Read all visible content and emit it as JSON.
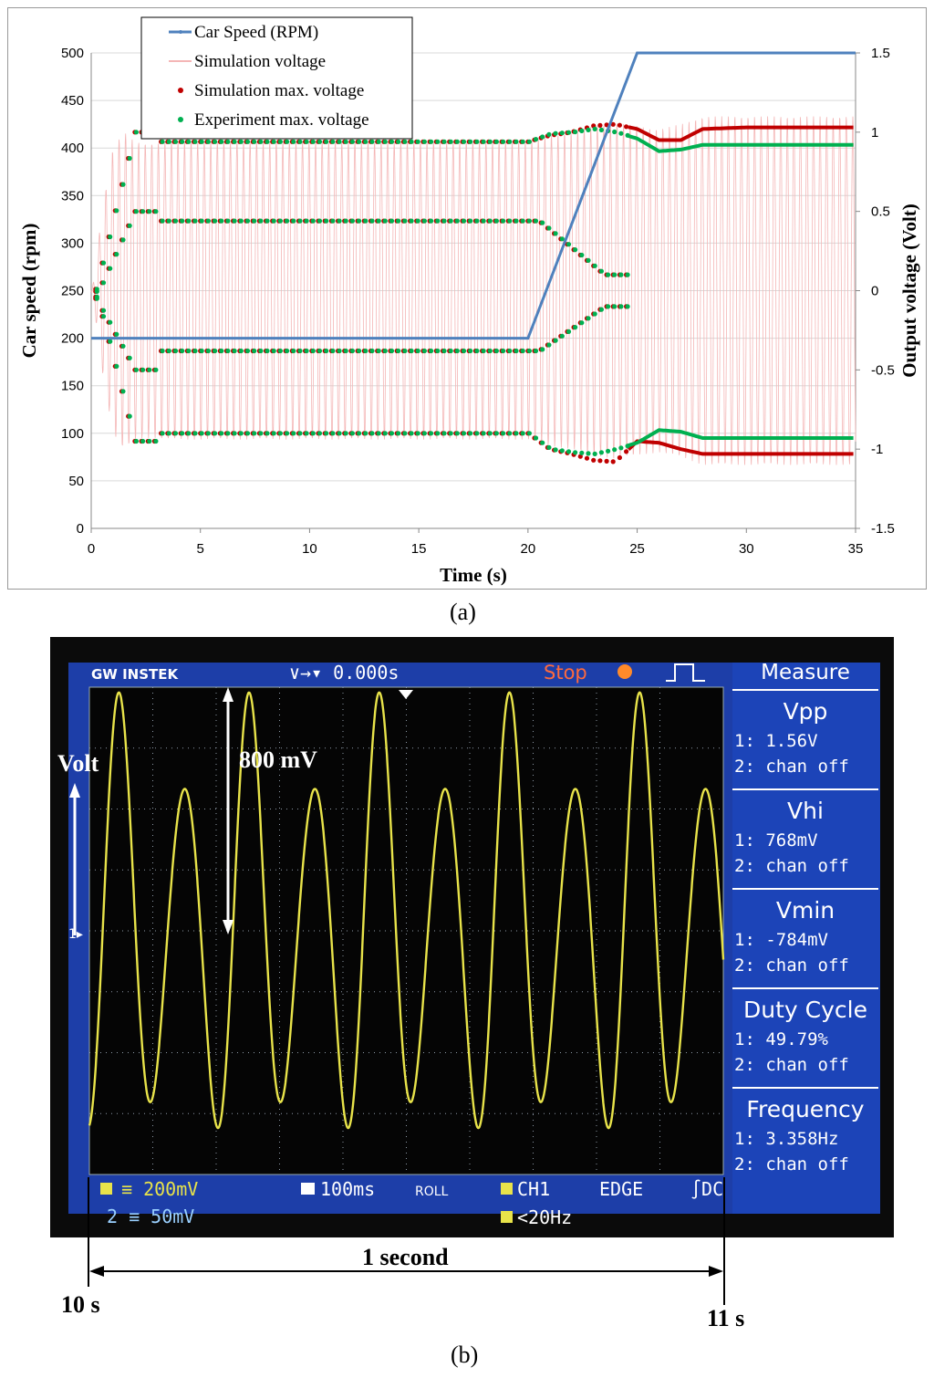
{
  "chart_data": [
    {
      "type": "line",
      "panel_label": "(a)",
      "xlabel": "Time (s)",
      "ylabel_left": "Car speed (rpm)",
      "ylabel_right": "Output voltage (Volt)",
      "xlim": [
        0,
        35
      ],
      "ylim_left": [
        0,
        500
      ],
      "ylim_right": [
        -1.5,
        1.5
      ],
      "x_ticks": [
        "0",
        "5",
        "10",
        "15",
        "20",
        "25",
        "30",
        "35"
      ],
      "y_ticks_left": [
        "0",
        "50",
        "100",
        "150",
        "200",
        "250",
        "300",
        "350",
        "400",
        "450",
        "500"
      ],
      "y_ticks_right": [
        "-1.5",
        "-1",
        "-0.5",
        "0",
        "0.5",
        "1",
        "1.5"
      ],
      "grid": "horizontal",
      "legend_position": "top-left",
      "series": [
        {
          "name": "Car Speed (RPM)",
          "axis": "left",
          "color": "#4f81bd",
          "x": [
            0,
            20,
            25,
            35
          ],
          "y": [
            200,
            200,
            500,
            500
          ]
        },
        {
          "name": "Simulation voltage",
          "axis": "right",
          "color": "#f4b6b6",
          "note_period_s": 0.3,
          "envelope_x": [
            0,
            0.5,
            1,
            1.5,
            2,
            2.5,
            3,
            3.5,
            4,
            20,
            20.5,
            21,
            21.5,
            22,
            22.5,
            23,
            23.5,
            24,
            25,
            26,
            27,
            28,
            29,
            30,
            35
          ],
          "envelope_max": [
            -0.05,
            0.5,
            0.9,
            1.0,
            0.94,
            0.93,
            0.93,
            0.94,
            0.94,
            0.94,
            0.96,
            0.98,
            0.99,
            1.0,
            1.02,
            1.04,
            1.05,
            1.06,
            1.04,
            1.02,
            1.05,
            1.1,
            1.1,
            1.1,
            1.1
          ]
        },
        {
          "name": "Simulation max. voltage",
          "axis": "right",
          "color": "#c00000",
          "marker": "dot",
          "x": [
            3,
            5,
            10,
            15,
            20,
            21,
            22,
            23,
            24,
            25,
            26,
            27,
            28,
            30,
            35
          ],
          "y_outer_top": [
            0.94,
            0.94,
            0.94,
            0.94,
            0.94,
            0.98,
            1.0,
            1.04,
            1.05,
            1.02,
            0.95,
            0.95,
            1.02,
            1.03,
            1.03
          ],
          "y_outer_bottom": [
            -0.9,
            -0.9,
            -0.9,
            -0.9,
            -0.9,
            -1.0,
            -1.03,
            -1.07,
            -1.08,
            -0.95,
            -0.96,
            -1.0,
            -1.03,
            -1.03,
            -1.03
          ]
        },
        {
          "name": "Experiment max. voltage",
          "axis": "right",
          "color": "#00b050",
          "marker": "dot",
          "x": [
            3,
            5,
            10,
            15,
            20,
            21,
            22,
            23,
            24,
            25,
            26,
            27,
            28,
            30,
            35
          ],
          "y_outer_top": [
            0.94,
            0.94,
            0.94,
            0.94,
            0.94,
            0.99,
            1.0,
            1.02,
            1.0,
            0.96,
            0.88,
            0.89,
            0.92,
            0.92,
            0.92
          ],
          "y_outer_bottom": [
            -0.9,
            -0.9,
            -0.9,
            -0.9,
            -0.9,
            -1.0,
            -1.02,
            -1.03,
            -1.0,
            -0.96,
            -0.88,
            -0.89,
            -0.93,
            -0.93,
            -0.93
          ]
        }
      ],
      "inner_envelope": {
        "top": 0.44,
        "bottom": -0.38
      }
    },
    {
      "type": "line",
      "panel_label": "(b)",
      "brand": "GW INSTEK",
      "trigger_time": "0.000s",
      "run_state": "Stop",
      "menu_title": "Measure",
      "measurements": [
        {
          "name": "Vpp",
          "ch1": "1: 1.56V",
          "ch2": "2: chan off"
        },
        {
          "name": "Vhi",
          "ch1": "1: 768mV",
          "ch2": "2: chan off"
        },
        {
          "name": "Vmin",
          "ch1": "1: -784mV",
          "ch2": "2: chan off"
        },
        {
          "name": "Duty Cycle",
          "ch1": "1: 49.79%",
          "ch2": "2: chan off"
        },
        {
          "name": "Frequency",
          "ch1": "1: 3.358Hz",
          "ch2": "2: chan off"
        }
      ],
      "status": {
        "ch1_scale": "200mV",
        "ch2_scale": "50mV",
        "timebase": "100ms",
        "mode": "ROLL",
        "trigger_source": "CH1",
        "trigger_type": "EDGE",
        "coupling": "DC",
        "filter": "<20Hz"
      },
      "annotations": {
        "volt": "Volt",
        "amplitude": "800 mV",
        "span": "1 second",
        "start": "10 s",
        "end": "11 s"
      },
      "waveform": {
        "color": "#e8e34a",
        "duration_s": 1.0,
        "big_peak_v": 0.78,
        "small_peak_v": 0.45,
        "frequency_hz": 3.358
      }
    }
  ]
}
